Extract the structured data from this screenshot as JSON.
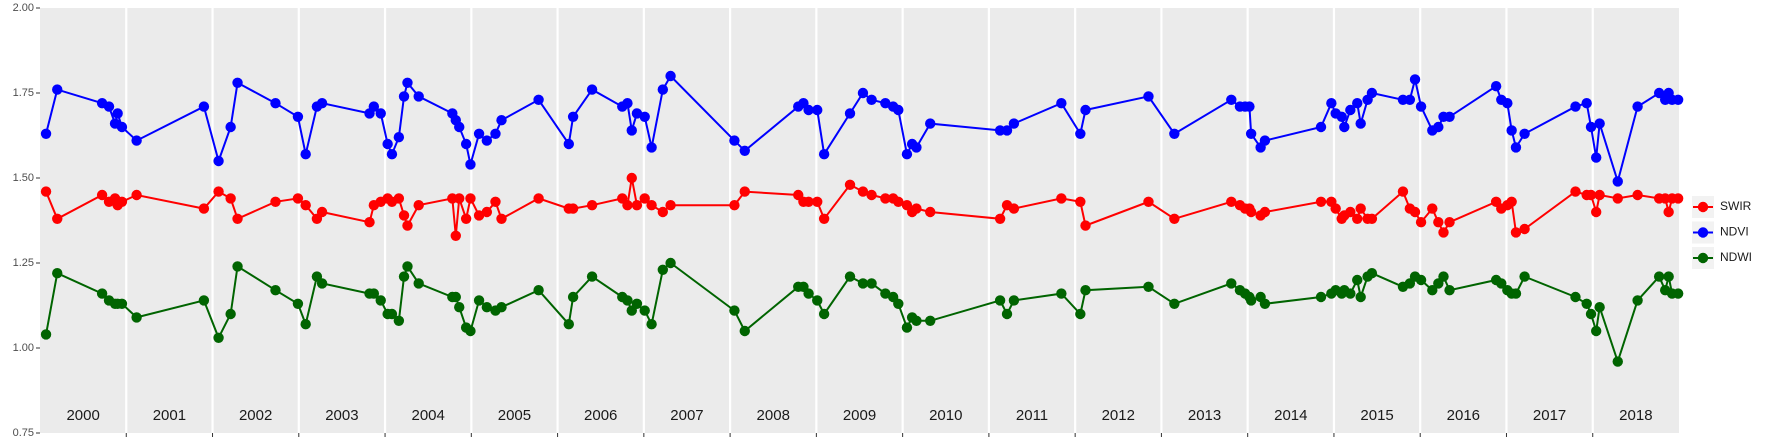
{
  "chart_data": {
    "type": "line",
    "x": [
      2000.07,
      2000.2,
      2000.72,
      2000.8,
      2000.87,
      2000.9,
      2000.95,
      2001.12,
      2001.9,
      2002.07,
      2002.21,
      2002.29,
      2002.73,
      2002.99,
      2003.08,
      2003.21,
      2003.27,
      2003.82,
      2003.87,
      2003.95,
      2004.03,
      2004.08,
      2004.16,
      2004.22,
      2004.26,
      2004.39,
      2004.78,
      2004.82,
      2004.86,
      2004.94,
      2004.99,
      2005.09,
      2005.18,
      2005.28,
      2005.35,
      2005.78,
      2006.13,
      2006.18,
      2006.4,
      2006.75,
      2006.81,
      2006.86,
      2006.92,
      2007.01,
      2007.09,
      2007.22,
      2007.31,
      2008.05,
      2008.17,
      2008.79,
      2008.85,
      2008.91,
      2009.01,
      2009.09,
      2009.39,
      2009.54,
      2009.64,
      2009.8,
      2009.89,
      2009.95,
      2010.05,
      2010.11,
      2010.16,
      2010.32,
      2011.13,
      2011.21,
      2011.29,
      2011.84,
      2012.06,
      2012.12,
      2012.85,
      2013.15,
      2013.81,
      2013.91,
      2013.97,
      2014.02,
      2014.04,
      2014.15,
      2014.2,
      2014.85,
      2014.97,
      2015.02,
      2015.09,
      2015.12,
      2015.19,
      2015.27,
      2015.31,
      2015.39,
      2015.44,
      2015.8,
      2015.88,
      2015.94,
      2016.01,
      2016.14,
      2016.21,
      2016.27,
      2016.34,
      2016.88,
      2016.94,
      2017.01,
      2017.06,
      2017.11,
      2017.21,
      2017.8,
      2017.93,
      2017.98,
      2018.04,
      2018.08,
      2018.29,
      2018.52,
      2018.77,
      2018.84,
      2018.88,
      2018.92,
      2018.99
    ],
    "series": [
      {
        "name": "SWIR",
        "color": "#ff0000",
        "values": [
          1.46,
          1.38,
          1.45,
          1.43,
          1.44,
          1.42,
          1.43,
          1.45,
          1.41,
          1.46,
          1.44,
          1.38,
          1.43,
          1.44,
          1.42,
          1.38,
          1.4,
          1.37,
          1.42,
          1.43,
          1.44,
          1.43,
          1.44,
          1.39,
          1.36,
          1.42,
          1.44,
          1.33,
          1.44,
          1.38,
          1.44,
          1.39,
          1.4,
          1.43,
          1.38,
          1.44,
          1.41,
          1.41,
          1.42,
          1.44,
          1.42,
          1.5,
          1.42,
          1.44,
          1.42,
          1.4,
          1.42,
          1.42,
          1.46,
          1.45,
          1.43,
          1.43,
          1.43,
          1.38,
          1.48,
          1.46,
          1.45,
          1.44,
          1.44,
          1.43,
          1.42,
          1.4,
          1.41,
          1.4,
          1.38,
          1.42,
          1.41,
          1.44,
          1.43,
          1.36,
          1.43,
          1.38,
          1.43,
          1.42,
          1.41,
          1.41,
          1.4,
          1.39,
          1.4,
          1.43,
          1.43,
          1.41,
          1.38,
          1.39,
          1.4,
          1.38,
          1.41,
          1.38,
          1.38,
          1.46,
          1.41,
          1.4,
          1.37,
          1.41,
          1.37,
          1.34,
          1.37,
          1.43,
          1.41,
          1.42,
          1.43,
          1.34,
          1.35,
          1.46,
          1.45,
          1.45,
          1.4,
          1.45,
          1.44,
          1.45,
          1.44,
          1.44,
          1.4,
          1.44,
          1.44
        ]
      },
      {
        "name": "NDVI",
        "color": "#0000ff",
        "values": [
          1.63,
          1.76,
          1.72,
          1.71,
          1.66,
          1.69,
          1.65,
          1.61,
          1.71,
          1.55,
          1.65,
          1.78,
          1.72,
          1.68,
          1.57,
          1.71,
          1.72,
          1.69,
          1.71,
          1.69,
          1.6,
          1.57,
          1.62,
          1.74,
          1.78,
          1.74,
          1.69,
          1.67,
          1.65,
          1.6,
          1.54,
          1.63,
          1.61,
          1.63,
          1.67,
          1.73,
          1.6,
          1.68,
          1.76,
          1.71,
          1.72,
          1.64,
          1.69,
          1.68,
          1.59,
          1.76,
          1.8,
          1.61,
          1.58,
          1.71,
          1.72,
          1.7,
          1.7,
          1.57,
          1.69,
          1.75,
          1.73,
          1.72,
          1.71,
          1.7,
          1.57,
          1.6,
          1.59,
          1.66,
          1.64,
          1.64,
          1.66,
          1.72,
          1.63,
          1.7,
          1.74,
          1.63,
          1.73,
          1.71,
          1.71,
          1.71,
          1.63,
          1.59,
          1.61,
          1.65,
          1.72,
          1.69,
          1.68,
          1.65,
          1.7,
          1.72,
          1.66,
          1.73,
          1.75,
          1.73,
          1.73,
          1.79,
          1.71,
          1.64,
          1.65,
          1.68,
          1.68,
          1.77,
          1.73,
          1.72,
          1.64,
          1.59,
          1.63,
          1.71,
          1.72,
          1.65,
          1.56,
          1.66,
          1.49,
          1.71,
          1.75,
          1.73,
          1.75,
          1.73,
          1.73
        ]
      },
      {
        "name": "NDWI",
        "color": "#006400",
        "values": [
          1.04,
          1.22,
          1.16,
          1.14,
          1.13,
          1.13,
          1.13,
          1.09,
          1.14,
          1.03,
          1.1,
          1.24,
          1.17,
          1.13,
          1.07,
          1.21,
          1.19,
          1.16,
          1.16,
          1.14,
          1.1,
          1.1,
          1.08,
          1.21,
          1.24,
          1.19,
          1.15,
          1.15,
          1.12,
          1.06,
          1.05,
          1.14,
          1.12,
          1.11,
          1.12,
          1.17,
          1.07,
          1.15,
          1.21,
          1.15,
          1.14,
          1.11,
          1.13,
          1.11,
          1.07,
          1.23,
          1.25,
          1.11,
          1.05,
          1.18,
          1.18,
          1.16,
          1.14,
          1.1,
          1.21,
          1.19,
          1.19,
          1.16,
          1.15,
          1.13,
          1.06,
          1.09,
          1.08,
          1.08,
          1.14,
          1.1,
          1.14,
          1.16,
          1.1,
          1.17,
          1.18,
          1.13,
          1.19,
          1.17,
          1.16,
          1.15,
          1.14,
          1.15,
          1.13,
          1.15,
          1.16,
          1.17,
          1.16,
          1.17,
          1.16,
          1.2,
          1.15,
          1.21,
          1.22,
          1.18,
          1.19,
          1.21,
          1.2,
          1.17,
          1.19,
          1.21,
          1.17,
          1.2,
          1.19,
          1.17,
          1.16,
          1.16,
          1.21,
          1.15,
          1.13,
          1.1,
          1.05,
          1.12,
          0.96,
          1.14,
          1.21,
          1.17,
          1.21,
          1.16,
          1.16
        ]
      }
    ],
    "xlim": [
      2000,
      2019
    ],
    "xticks": [
      2001,
      2002,
      2003,
      2004,
      2005,
      2006,
      2007,
      2008,
      2009,
      2010,
      2011,
      2012,
      2013,
      2014,
      2015,
      2016,
      2017,
      2018
    ],
    "year_labels": [
      {
        "value": 2000.5,
        "label": "2000"
      },
      {
        "value": 2001.5,
        "label": "2001"
      },
      {
        "value": 2002.5,
        "label": "2002"
      },
      {
        "value": 2003.5,
        "label": "2003"
      },
      {
        "value": 2004.5,
        "label": "2004"
      },
      {
        "value": 2005.5,
        "label": "2005"
      },
      {
        "value": 2006.5,
        "label": "2006"
      },
      {
        "value": 2007.5,
        "label": "2007"
      },
      {
        "value": 2008.5,
        "label": "2008"
      },
      {
        "value": 2009.5,
        "label": "2009"
      },
      {
        "value": 2010.5,
        "label": "2010"
      },
      {
        "value": 2011.5,
        "label": "2011"
      },
      {
        "value": 2012.5,
        "label": "2012"
      },
      {
        "value": 2013.5,
        "label": "2013"
      },
      {
        "value": 2014.5,
        "label": "2014"
      },
      {
        "value": 2015.5,
        "label": "2015"
      },
      {
        "value": 2016.5,
        "label": "2016"
      },
      {
        "value": 2017.5,
        "label": "2017"
      },
      {
        "value": 2018.5,
        "label": "2018"
      }
    ],
    "ylim": [
      0.75,
      2.0
    ],
    "yticks": [
      0.75,
      {
        "value": 1.0,
        "label": "1.00"
      },
      1.25,
      {
        "value": 1.5,
        "label": "1.50"
      },
      1.75,
      {
        "value": 2.0,
        "label": "2.00"
      }
    ],
    "grid": "x"
  }
}
